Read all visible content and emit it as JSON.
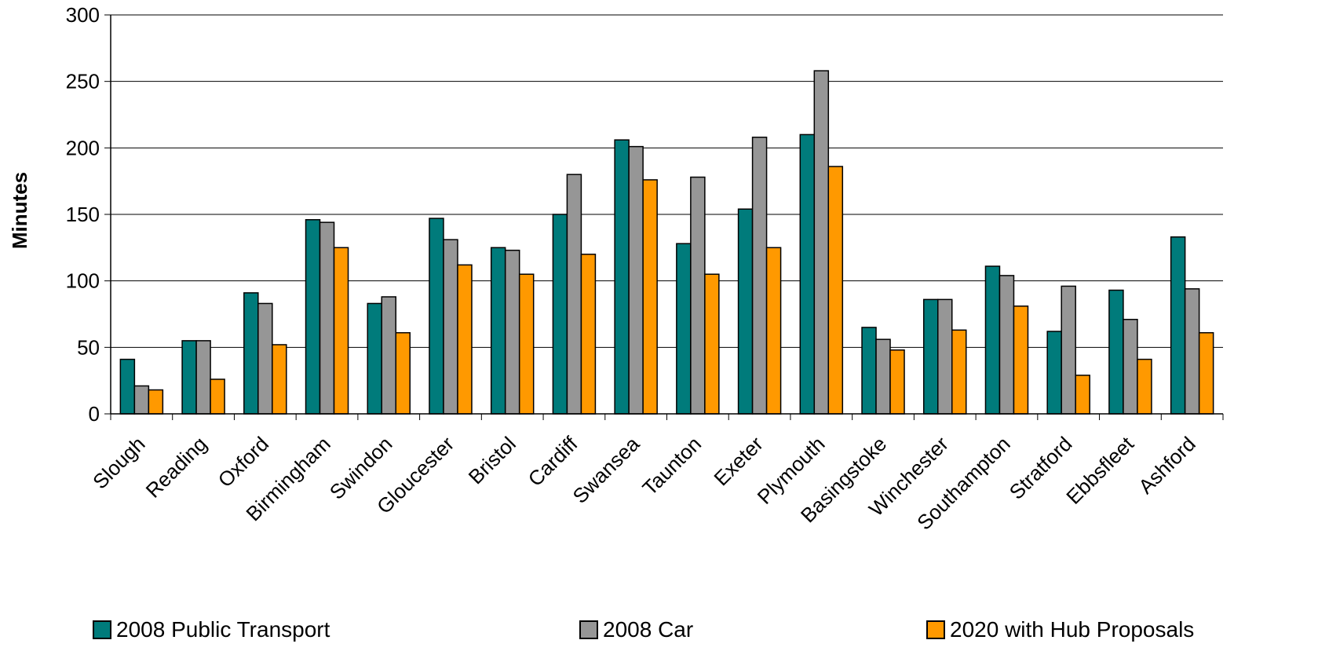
{
  "chart_data": {
    "type": "bar",
    "title": "",
    "xlabel": "",
    "ylabel": "Minutes",
    "ylim": [
      0,
      300
    ],
    "yticks": [
      0,
      50,
      100,
      150,
      200,
      250,
      300
    ],
    "grid": true,
    "legend_position": "bottom",
    "categories": [
      "Slough",
      "Reading",
      "Oxford",
      "Birmingham",
      "Swindon",
      "Gloucester",
      "Bristol",
      "Cardiff",
      "Swansea",
      "Taunton",
      "Exeter",
      "Plymouth",
      "Basingstoke",
      "Winchester",
      "Southampton",
      "Stratford",
      "Ebbsfleet",
      "Ashford"
    ],
    "series": [
      {
        "name": "2008 Public Transport",
        "color": "#007B7B",
        "values": [
          41,
          55,
          91,
          146,
          83,
          147,
          125,
          150,
          206,
          128,
          154,
          210,
          65,
          86,
          111,
          62,
          93,
          133
        ]
      },
      {
        "name": "2008 Car",
        "color": "#969696",
        "values": [
          21,
          55,
          83,
          144,
          88,
          131,
          123,
          180,
          201,
          178,
          208,
          258,
          56,
          86,
          104,
          96,
          71,
          94
        ]
      },
      {
        "name": "2020 with Hub Proposals",
        "color": "#FF9900",
        "values": [
          18,
          26,
          52,
          125,
          61,
          112,
          105,
          120,
          176,
          105,
          125,
          186,
          48,
          63,
          81,
          29,
          41,
          61
        ]
      }
    ]
  }
}
